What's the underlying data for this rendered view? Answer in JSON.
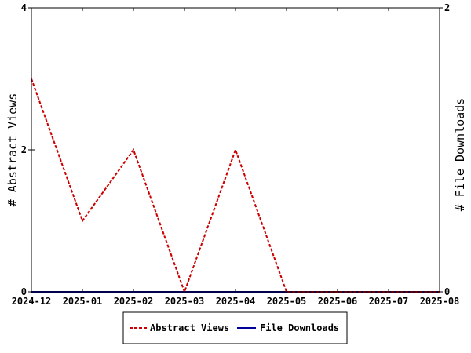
{
  "chart_data": {
    "type": "line",
    "x": [
      "2024-12",
      "2025-01",
      "2025-02",
      "2025-03",
      "2025-04",
      "2025-05",
      "2025-06",
      "2025-07",
      "2025-08"
    ],
    "x_tick_labels": [
      "2024-12",
      "2025-01",
      "2025-02",
      "2025-03",
      "2025-04",
      "2025-05",
      "2025-06",
      "2025-07",
      "2025-08"
    ],
    "series": [
      {
        "name": "Abstract Views",
        "axis": "left",
        "color": "#cc0000",
        "style": "dashed",
        "points": [
          [
            "2024-12-01",
            3
          ],
          [
            "2025-01-01",
            1
          ],
          [
            "2025-02-01",
            2
          ],
          [
            "2025-03-01",
            0
          ],
          [
            "2025-04-01",
            2
          ],
          [
            "2025-05-01",
            0
          ],
          [
            "2025-06-01",
            0
          ],
          [
            "2025-07-01",
            0
          ],
          [
            "2025-08-01",
            0
          ]
        ]
      },
      {
        "name": "File Downloads",
        "axis": "right",
        "color": "#000099",
        "style": "solid",
        "points": [
          [
            "2024-12-01",
            0
          ],
          [
            "2025-01-01",
            0
          ],
          [
            "2025-02-01",
            0
          ],
          [
            "2025-03-01",
            0
          ],
          [
            "2025-04-01",
            0
          ],
          [
            "2025-05-01",
            0
          ],
          [
            "2025-06-01",
            0
          ],
          [
            "2025-07-01",
            0
          ],
          [
            "2025-08-01",
            0
          ]
        ]
      }
    ],
    "y_left": {
      "label": "# Abstract Views",
      "range": [
        0,
        4
      ],
      "ticks": [
        0,
        2,
        4
      ]
    },
    "y_right": {
      "label": "# File Downloads",
      "range": [
        0,
        2
      ],
      "ticks": [
        0,
        2
      ]
    },
    "grid": false,
    "legend_position": "bottom-center"
  }
}
